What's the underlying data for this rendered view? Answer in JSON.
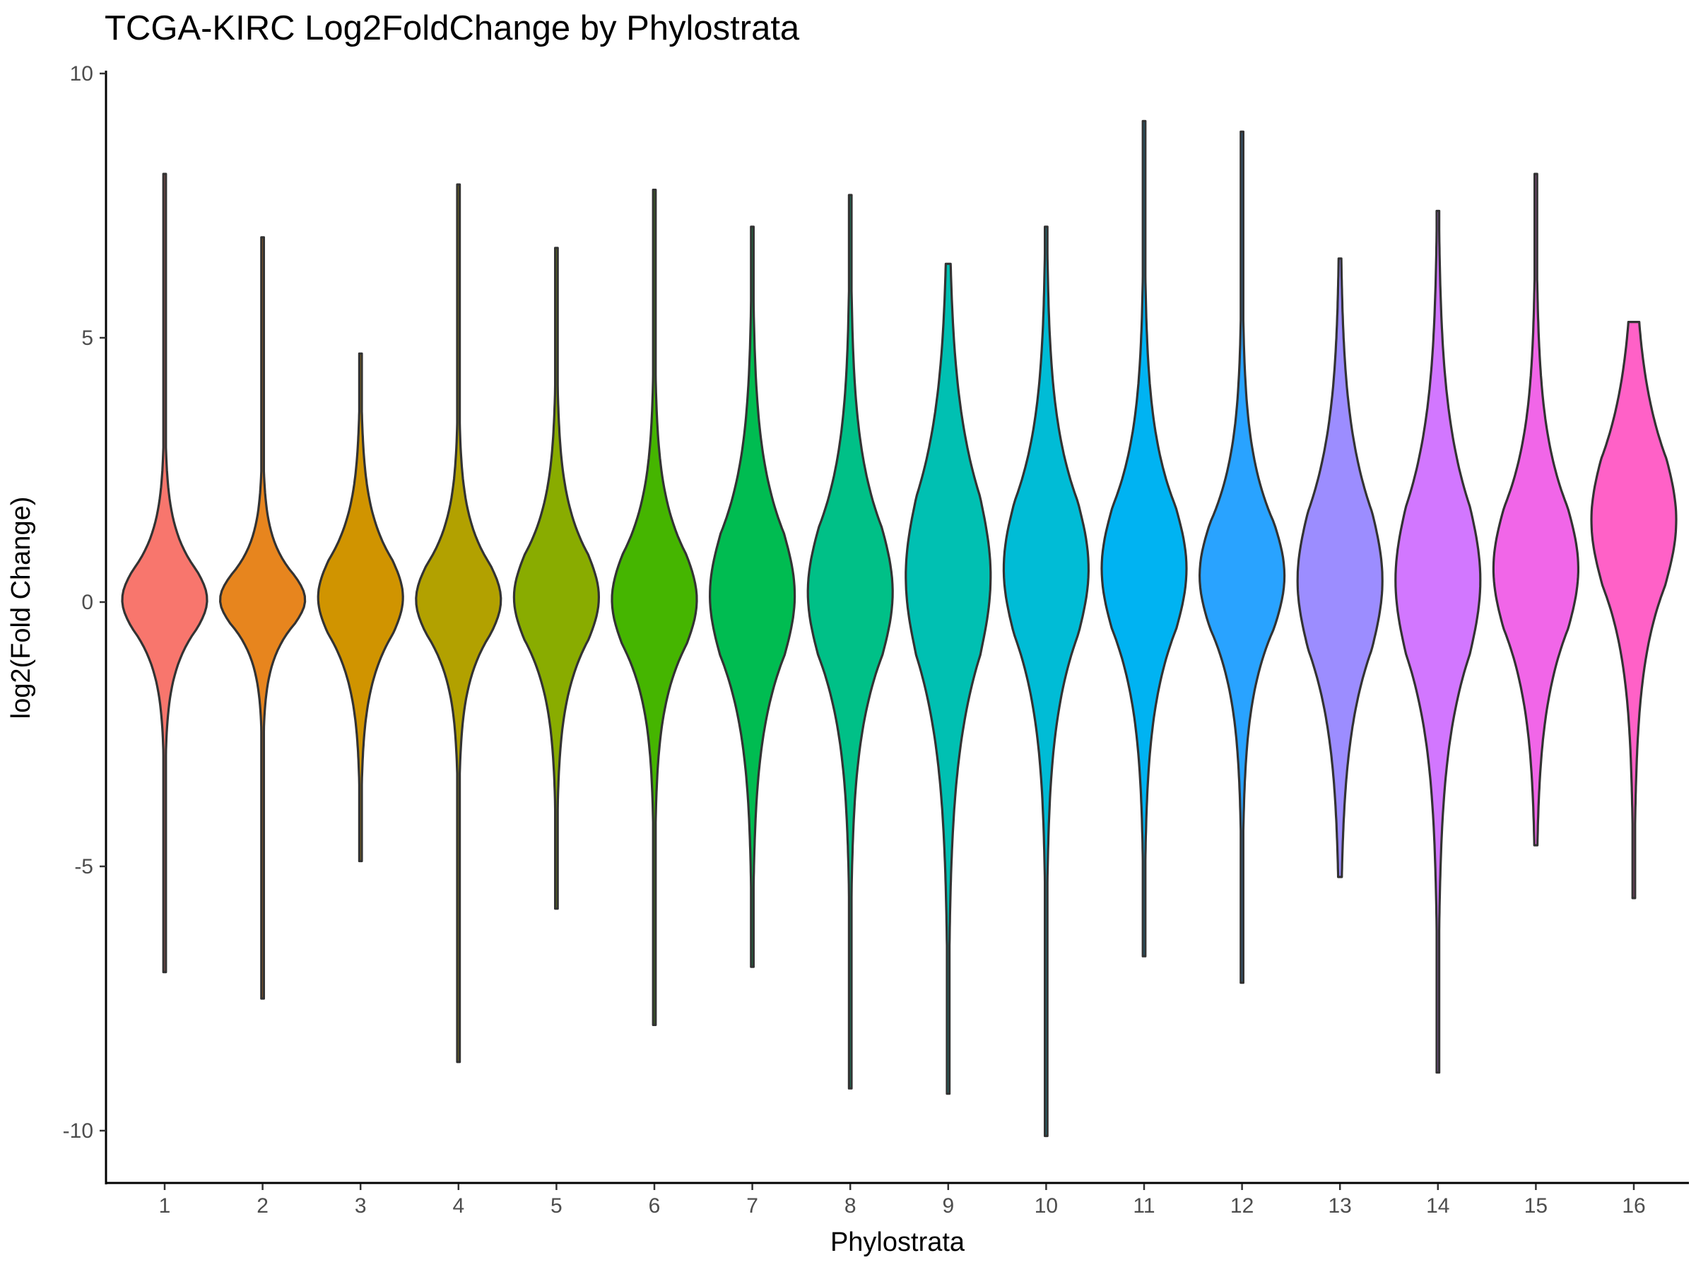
{
  "chart_data": {
    "type": "violin",
    "title": "TCGA-KIRC Log2FoldChange by Phylostrata",
    "xlabel": "Phylostrata",
    "ylabel": "log2(Fold Change)",
    "ylim": [
      -11.0,
      10.2
    ],
    "y_ticks": [
      -10,
      -5,
      0,
      5,
      10
    ],
    "y_tick_labels": [
      "-10",
      "-5",
      "0",
      "5",
      "10"
    ],
    "grid": false,
    "legend": "none",
    "categories": [
      "1",
      "2",
      "3",
      "4",
      "5",
      "6",
      "7",
      "8",
      "9",
      "10",
      "11",
      "12",
      "13",
      "14",
      "15",
      "16"
    ],
    "colors": [
      "#F8766D",
      "#E7851E",
      "#D09400",
      "#B2A100",
      "#89AC00",
      "#45B500",
      "#00BC51",
      "#00C087",
      "#00C0B2",
      "#00BCD6",
      "#00B3F2",
      "#29A3FF",
      "#9C8DFF",
      "#D277FF",
      "#F166E8",
      "#FF61C7"
    ],
    "series": [
      {
        "category": "1",
        "min": -7.0,
        "max": 8.1,
        "median": 0.0,
        "q1": -0.5,
        "q3": 0.6
      },
      {
        "category": "2",
        "min": -7.5,
        "max": 6.9,
        "median": 0.0,
        "q1": -0.4,
        "q3": 0.5
      },
      {
        "category": "3",
        "min": -4.9,
        "max": 4.7,
        "median": 0.0,
        "q1": -0.6,
        "q3": 0.8
      },
      {
        "category": "4",
        "min": -8.7,
        "max": 7.9,
        "median": 0.0,
        "q1": -0.6,
        "q3": 0.7
      },
      {
        "category": "5",
        "min": -5.8,
        "max": 6.7,
        "median": 0.0,
        "q1": -0.7,
        "q3": 0.9
      },
      {
        "category": "6",
        "min": -8.0,
        "max": 7.8,
        "median": 0.0,
        "q1": -0.8,
        "q3": 0.9
      },
      {
        "category": "7",
        "min": -6.9,
        "max": 7.1,
        "median": 0.0,
        "q1": -1.0,
        "q3": 1.3
      },
      {
        "category": "8",
        "min": -9.2,
        "max": 7.7,
        "median": 0.1,
        "q1": -1.0,
        "q3": 1.4
      },
      {
        "category": "9",
        "min": -9.3,
        "max": 6.4,
        "median": 0.4,
        "q1": -1.0,
        "q3": 2.0
      },
      {
        "category": "10",
        "min": -10.1,
        "max": 7.1,
        "median": 0.5,
        "q1": -0.6,
        "q3": 1.9
      },
      {
        "category": "11",
        "min": -6.7,
        "max": 9.1,
        "median": 0.5,
        "q1": -0.5,
        "q3": 1.8
      },
      {
        "category": "12",
        "min": -7.2,
        "max": 8.9,
        "median": 0.5,
        "q1": -0.5,
        "q3": 1.5
      },
      {
        "category": "13",
        "min": -5.2,
        "max": 6.5,
        "median": 0.5,
        "q1": -0.9,
        "q3": 1.7
      },
      {
        "category": "14",
        "min": -8.9,
        "max": 7.4,
        "median": 0.5,
        "q1": -1.0,
        "q3": 1.8
      },
      {
        "category": "15",
        "min": -4.6,
        "max": 8.1,
        "median": 0.5,
        "q1": -0.5,
        "q3": 1.8
      },
      {
        "category": "16",
        "min": -5.6,
        "max": 5.3,
        "median": 1.9,
        "q1": 0.3,
        "q3": 2.7
      }
    ]
  }
}
